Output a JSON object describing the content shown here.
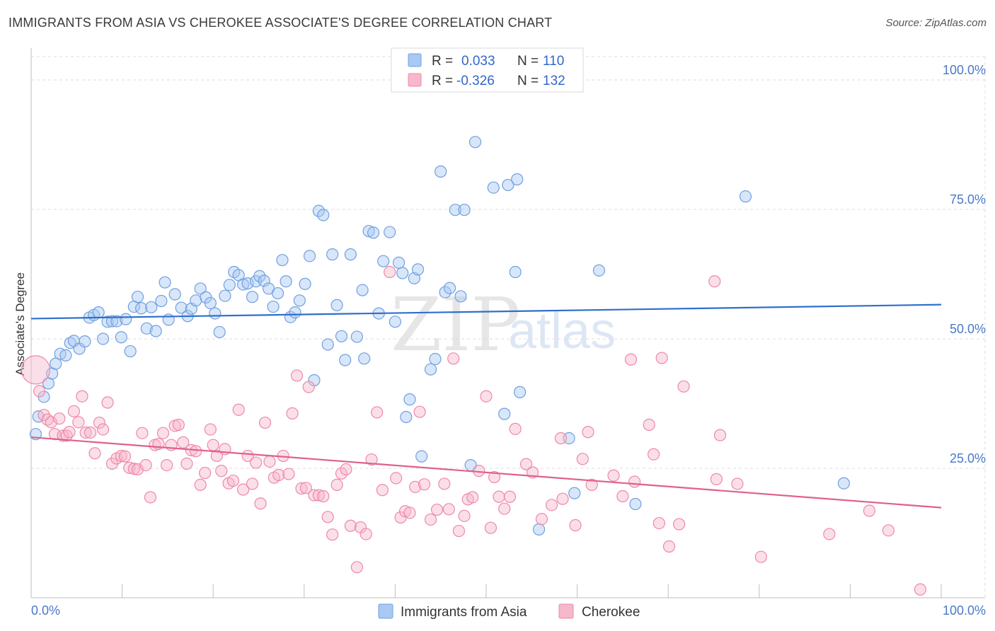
{
  "title": "IMMIGRANTS FROM ASIA VS CHEROKEE ASSOCIATE'S DEGREE CORRELATION CHART",
  "source": "Source: ZipAtlas.com",
  "watermark": {
    "zip": "ZIP",
    "atlas": "atlas"
  },
  "legend": {
    "r_label": "R =",
    "n_label": "N =",
    "rows": [
      {
        "r": "0.033",
        "n": "110",
        "color": "#a9c8f2"
      },
      {
        "r": "-0.326",
        "n": "132",
        "color": "#f6b8cb"
      }
    ]
  },
  "bottom_legend": [
    "Immigrants from Asia",
    "Cherokee"
  ],
  "chart_data": {
    "type": "scatter",
    "ylabel": "Associate's Degree",
    "xlim": [
      0,
      100
    ],
    "ylim": [
      0,
      100
    ],
    "x_tick_labels": {
      "left": "0.0%",
      "right": "100.0%"
    },
    "y_ticks": [
      {
        "value": 25,
        "label": "25.0%"
      },
      {
        "value": 50,
        "label": "50.0%"
      },
      {
        "value": 75,
        "label": "75.0%"
      },
      {
        "value": 100,
        "label": "100.0%"
      }
    ],
    "grid": true,
    "series": [
      {
        "name": "Immigrants from Asia",
        "color": "#6fa0e0",
        "fill": "#a9c8f2",
        "line_color": "#2f6fcc",
        "trend": [
          [
            0,
            53.9
          ],
          [
            100,
            56.6
          ]
        ],
        "points": [
          [
            0.5,
            31.6
          ],
          [
            0.8,
            35.0
          ],
          [
            1.4,
            38.8
          ],
          [
            1.9,
            41.4
          ],
          [
            2.3,
            43.3
          ],
          [
            2.7,
            45.2
          ],
          [
            3.2,
            47.1
          ],
          [
            3.8,
            46.8
          ],
          [
            4.3,
            49.2
          ],
          [
            4.7,
            49.6
          ],
          [
            5.3,
            48.1
          ],
          [
            5.9,
            49.5
          ],
          [
            6.4,
            54.1
          ],
          [
            6.9,
            54.6
          ],
          [
            7.4,
            55.1
          ],
          [
            7.9,
            50.0
          ],
          [
            8.4,
            53.3
          ],
          [
            8.9,
            53.4
          ],
          [
            9.4,
            53.4
          ],
          [
            9.9,
            50.3
          ],
          [
            10.4,
            53.8
          ],
          [
            10.9,
            47.6
          ],
          [
            11.3,
            56.2
          ],
          [
            11.7,
            58.1
          ],
          [
            12.1,
            55.9
          ],
          [
            12.7,
            52.0
          ],
          [
            13.2,
            56.1
          ],
          [
            13.7,
            51.5
          ],
          [
            14.3,
            57.3
          ],
          [
            14.7,
            60.9
          ],
          [
            15.1,
            53.7
          ],
          [
            15.8,
            58.6
          ],
          [
            16.5,
            56.0
          ],
          [
            17.2,
            54.4
          ],
          [
            17.6,
            55.8
          ],
          [
            18.1,
            57.4
          ],
          [
            18.6,
            59.7
          ],
          [
            19.2,
            58.0
          ],
          [
            19.7,
            56.9
          ],
          [
            20.2,
            54.9
          ],
          [
            20.7,
            51.3
          ],
          [
            21.3,
            58.3
          ],
          [
            21.8,
            60.4
          ],
          [
            22.3,
            62.9
          ],
          [
            22.8,
            62.3
          ],
          [
            23.3,
            60.5
          ],
          [
            23.8,
            60.7
          ],
          [
            24.3,
            58.1
          ],
          [
            24.7,
            61.1
          ],
          [
            25.1,
            62.1
          ],
          [
            25.6,
            61.2
          ],
          [
            26.1,
            59.7
          ],
          [
            26.6,
            56.2
          ],
          [
            27.1,
            58.8
          ],
          [
            27.6,
            65.2
          ],
          [
            28.0,
            61.1
          ],
          [
            28.5,
            54.2
          ],
          [
            29.0,
            55.1
          ],
          [
            29.5,
            57.4
          ],
          [
            30.1,
            60.6
          ],
          [
            30.6,
            66.0
          ],
          [
            31.1,
            42.0
          ],
          [
            31.6,
            74.7
          ],
          [
            32.1,
            73.9
          ],
          [
            32.6,
            48.9
          ],
          [
            33.1,
            66.3
          ],
          [
            33.6,
            56.5
          ],
          [
            34.1,
            50.5
          ],
          [
            34.5,
            45.9
          ],
          [
            35.1,
            66.3
          ],
          [
            35.8,
            50.4
          ],
          [
            36.4,
            59.4
          ],
          [
            36.6,
            46.2
          ],
          [
            37.1,
            70.8
          ],
          [
            37.6,
            70.5
          ],
          [
            38.2,
            54.9
          ],
          [
            38.7,
            65.0
          ],
          [
            39.4,
            70.6
          ],
          [
            40.0,
            53.3
          ],
          [
            40.4,
            64.7
          ],
          [
            40.8,
            62.7
          ],
          [
            41.2,
            34.9
          ],
          [
            41.6,
            38.3
          ],
          [
            42.1,
            61.7
          ],
          [
            42.5,
            63.4
          ],
          [
            42.9,
            27.3
          ],
          [
            43.9,
            44.1
          ],
          [
            44.4,
            46.1
          ],
          [
            45.0,
            82.3
          ],
          [
            45.5,
            59.0
          ],
          [
            46.0,
            59.8
          ],
          [
            46.6,
            74.9
          ],
          [
            47.2,
            58.2
          ],
          [
            47.6,
            74.9
          ],
          [
            48.3,
            25.6
          ],
          [
            48.8,
            88.0
          ],
          [
            50.8,
            79.2
          ],
          [
            52.0,
            35.5
          ],
          [
            52.4,
            79.7
          ],
          [
            53.4,
            80.8
          ],
          [
            53.7,
            39.7
          ],
          [
            53.2,
            62.9
          ],
          [
            55.8,
            13.2
          ],
          [
            59.1,
            30.8
          ],
          [
            59.7,
            20.2
          ],
          [
            62.4,
            63.2
          ],
          [
            66.4,
            18.1
          ],
          [
            78.5,
            77.5
          ],
          [
            89.3,
            22.1
          ]
        ]
      },
      {
        "name": "Cherokee",
        "color": "#ee88a8",
        "fill": "#f6b8cb",
        "line_color": "#e0608c",
        "trend": [
          [
            0,
            31.0
          ],
          [
            100,
            17.4
          ]
        ],
        "points": [
          [
            0.5,
            44.0
          ],
          [
            0.9,
            39.9
          ],
          [
            1.4,
            35.3
          ],
          [
            1.8,
            34.4
          ],
          [
            2.2,
            33.9
          ],
          [
            2.6,
            31.6
          ],
          [
            3.1,
            34.6
          ],
          [
            3.5,
            31.3
          ],
          [
            3.9,
            31.3
          ],
          [
            4.2,
            32.0
          ],
          [
            4.7,
            36.0
          ],
          [
            5.2,
            33.9
          ],
          [
            5.6,
            38.9
          ],
          [
            6.0,
            31.9
          ],
          [
            6.5,
            31.9
          ],
          [
            7.0,
            27.9
          ],
          [
            7.5,
            33.8
          ],
          [
            7.9,
            32.5
          ],
          [
            8.4,
            37.7
          ],
          [
            8.9,
            25.9
          ],
          [
            9.4,
            26.9
          ],
          [
            9.9,
            27.4
          ],
          [
            10.3,
            27.3
          ],
          [
            10.8,
            25.1
          ],
          [
            11.3,
            24.9
          ],
          [
            11.7,
            24.8
          ],
          [
            12.2,
            31.8
          ],
          [
            12.6,
            25.6
          ],
          [
            13.1,
            19.4
          ],
          [
            13.6,
            29.5
          ],
          [
            14.0,
            29.7
          ],
          [
            14.5,
            31.8
          ],
          [
            14.9,
            25.6
          ],
          [
            15.4,
            29.5
          ],
          [
            15.8,
            33.2
          ],
          [
            16.2,
            33.4
          ],
          [
            16.7,
            30.0
          ],
          [
            17.1,
            25.9
          ],
          [
            17.6,
            28.5
          ],
          [
            18.1,
            28.3
          ],
          [
            18.6,
            21.8
          ],
          [
            19.1,
            24.1
          ],
          [
            19.7,
            32.5
          ],
          [
            20.0,
            29.5
          ],
          [
            20.4,
            27.4
          ],
          [
            20.9,
            24.5
          ],
          [
            21.3,
            28.7
          ],
          [
            21.7,
            22.1
          ],
          [
            22.2,
            22.6
          ],
          [
            22.8,
            36.3
          ],
          [
            23.3,
            20.9
          ],
          [
            23.8,
            27.4
          ],
          [
            24.3,
            22.0
          ],
          [
            24.7,
            26.1
          ],
          [
            25.2,
            18.2
          ],
          [
            25.7,
            33.8
          ],
          [
            26.2,
            26.3
          ],
          [
            26.7,
            23.2
          ],
          [
            27.2,
            23.7
          ],
          [
            27.7,
            27.4
          ],
          [
            28.3,
            23.9
          ],
          [
            28.7,
            35.6
          ],
          [
            29.2,
            42.9
          ],
          [
            29.7,
            21.1
          ],
          [
            30.2,
            21.2
          ],
          [
            30.5,
            40.7
          ],
          [
            31.1,
            19.8
          ],
          [
            31.6,
            19.8
          ],
          [
            32.1,
            19.6
          ],
          [
            32.6,
            15.6
          ],
          [
            33.1,
            12.2
          ],
          [
            33.6,
            21.8
          ],
          [
            34.1,
            24.0
          ],
          [
            34.6,
            24.8
          ],
          [
            35.1,
            13.9
          ],
          [
            35.8,
            5.9
          ],
          [
            36.2,
            13.6
          ],
          [
            36.8,
            12.3
          ],
          [
            37.4,
            26.7
          ],
          [
            38.0,
            35.8
          ],
          [
            38.6,
            20.8
          ],
          [
            39.4,
            62.9
          ],
          [
            40.1,
            23.1
          ],
          [
            40.6,
            15.5
          ],
          [
            41.1,
            16.7
          ],
          [
            41.6,
            16.4
          ],
          [
            42.2,
            21.4
          ],
          [
            42.7,
            35.9
          ],
          [
            43.2,
            21.9
          ],
          [
            43.9,
            15.1
          ],
          [
            44.6,
            17.0
          ],
          [
            45.4,
            22.0
          ],
          [
            45.9,
            17.1
          ],
          [
            46.4,
            46.2
          ],
          [
            47.0,
            12.9
          ],
          [
            47.6,
            15.8
          ],
          [
            48.0,
            19.0
          ],
          [
            48.5,
            19.4
          ],
          [
            49.2,
            24.5
          ],
          [
            50.0,
            38.9
          ],
          [
            50.5,
            13.5
          ],
          [
            50.9,
            23.3
          ],
          [
            51.4,
            19.5
          ],
          [
            52.0,
            17.2
          ],
          [
            52.6,
            19.5
          ],
          [
            53.2,
            32.6
          ],
          [
            54.4,
            25.8
          ],
          [
            55.1,
            24.2
          ],
          [
            56.1,
            15.2
          ],
          [
            57.2,
            17.9
          ],
          [
            58.2,
            30.8
          ],
          [
            58.4,
            19.1
          ],
          [
            59.8,
            14.0
          ],
          [
            60.6,
            26.8
          ],
          [
            61.6,
            21.8
          ],
          [
            61.2,
            32.0
          ],
          [
            64.0,
            23.6
          ],
          [
            65.0,
            19.6
          ],
          [
            65.9,
            46.0
          ],
          [
            66.3,
            22.4
          ],
          [
            67.9,
            33.4
          ],
          [
            68.4,
            27.7
          ],
          [
            69.0,
            14.4
          ],
          [
            69.3,
            46.3
          ],
          [
            70.1,
            9.9
          ],
          [
            71.2,
            14.2
          ],
          [
            71.7,
            40.8
          ],
          [
            75.1,
            61.1
          ],
          [
            75.3,
            22.9
          ],
          [
            75.7,
            31.4
          ],
          [
            77.6,
            22.0
          ],
          [
            80.2,
            7.9
          ],
          [
            87.7,
            12.3
          ],
          [
            92.1,
            16.8
          ],
          [
            94.2,
            13.0
          ],
          [
            97.7,
            1.6
          ]
        ]
      }
    ]
  }
}
